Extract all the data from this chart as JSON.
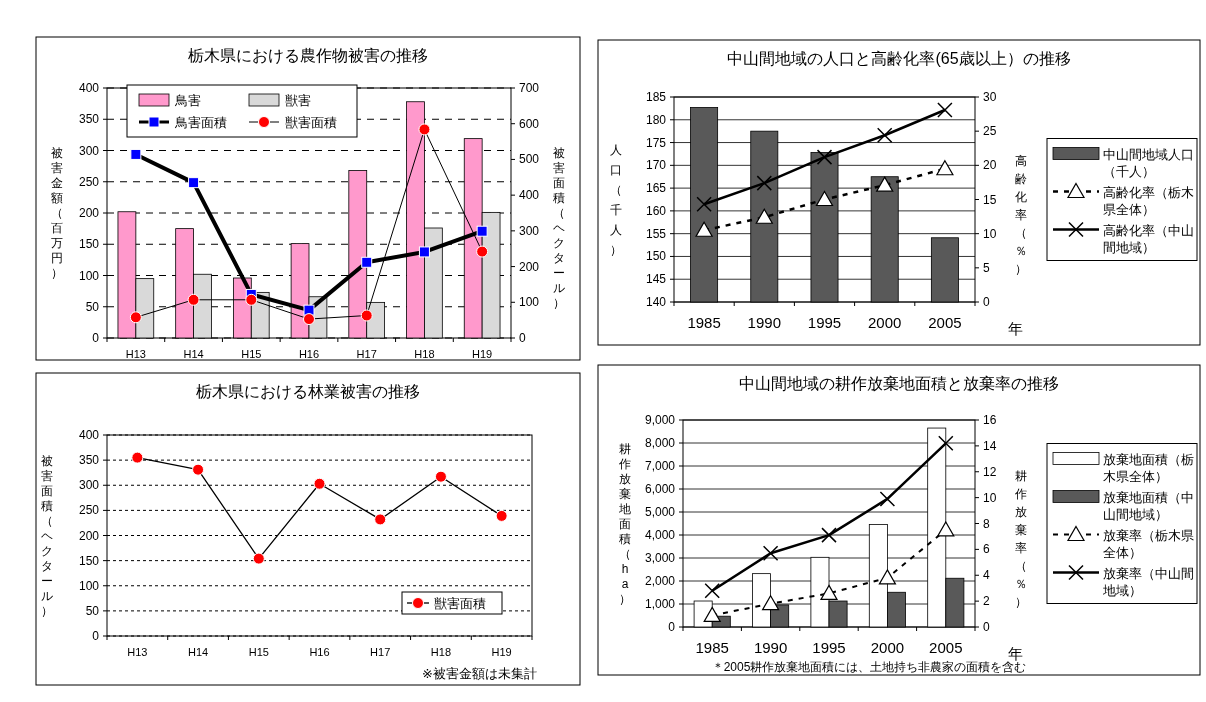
{
  "chart_data": [
    {
      "type": "bar",
      "title": "栃木県における農作物被害の推移",
      "ylabel": "被害金額（百万円）",
      "y2label": "被害面積（ヘクタール）",
      "categories": [
        "H13",
        "H14",
        "H15",
        "H16",
        "H17",
        "H18",
        "H19"
      ],
      "series": [
        {
          "name": "鳥害",
          "color": "#ff99cc",
          "values": [
            202,
            175,
            96,
            151,
            268,
            378,
            319
          ]
        },
        {
          "name": "獣害",
          "color": "#d9d9d9",
          "values": [
            95,
            102,
            73,
            66,
            57,
            176,
            201
          ]
        },
        {
          "name": "鳥害面積",
          "type": "line",
          "axis": "y2",
          "color": "#0000ff",
          "marker": "square",
          "values": [
            514,
            435,
            122,
            78,
            212,
            241,
            299
          ]
        },
        {
          "name": "獣害面積",
          "type": "line",
          "axis": "y2",
          "color": "#ff0000",
          "marker": "circle",
          "values": [
            58,
            107,
            107,
            53,
            63,
            584,
            242
          ]
        }
      ],
      "ylim": [
        0,
        400
      ],
      "yticks": [
        0,
        50,
        100,
        150,
        200,
        250,
        300,
        350,
        400
      ],
      "y2lim": [
        0,
        700
      ],
      "y2ticks": [
        0,
        100,
        200,
        300,
        400,
        500,
        600,
        700
      ],
      "grid": "y",
      "legend": "top left"
    },
    {
      "type": "bar",
      "title": "中山間地域の人口と高齢化率(65歳以上）の推移",
      "ylabel": "人口（千人）",
      "y2label": "高齢化率（％）",
      "xlabel": "年",
      "categories": [
        "1985",
        "1990",
        "1995",
        "2000",
        "2005"
      ],
      "series": [
        {
          "name": "中山間地域人口（千人）",
          "color": "#595959",
          "values": [
            182.7,
            177.5,
            172.8,
            167.5,
            154.1
          ]
        },
        {
          "name": "高齢化率（栃木県全体）",
          "type": "line",
          "axis": "y2",
          "color": "#000000",
          "marker": "triangle",
          "line_style": "dashed",
          "values": [
            10.5,
            12.4,
            15.0,
            17.1,
            19.5
          ]
        },
        {
          "name": "高齢化率（中山間地域）",
          "type": "line",
          "axis": "y2",
          "color": "#000000",
          "marker": "cross",
          "line_style": "solid",
          "values": [
            14.3,
            17.4,
            21.2,
            24.4,
            28.1
          ]
        }
      ],
      "ylim": [
        140,
        185
      ],
      "yticks": [
        140,
        145,
        150,
        155,
        160,
        165,
        170,
        175,
        180,
        185
      ],
      "y2lim": [
        0,
        30
      ],
      "y2ticks": [
        0,
        5,
        10,
        15,
        20,
        25,
        30
      ],
      "grid": "y",
      "legend": "right"
    },
    {
      "type": "line",
      "title": "栃木県における林業被害の推移",
      "ylabel": "被害面積（ヘクタール）",
      "categories": [
        "H13",
        "H14",
        "H15",
        "H16",
        "H17",
        "H18",
        "H19"
      ],
      "series": [
        {
          "name": "獣害面積",
          "color": "#ff0000",
          "marker": "circle",
          "values": [
            355,
            331,
            154,
            303,
            232,
            317,
            239
          ]
        }
      ],
      "ylim": [
        0,
        400
      ],
      "yticks": [
        0,
        50,
        100,
        150,
        200,
        250,
        300,
        350,
        400
      ],
      "grid": "y",
      "legend": "bottom right",
      "annotations": [
        "※被害金額は未集計"
      ]
    },
    {
      "type": "bar",
      "title": "中山間地域の耕作放棄地面積と放棄率の推移",
      "ylabel": "耕作放棄地面積（ha）",
      "y2label": "耕作放棄率（％）",
      "xlabel": "年",
      "categories": [
        "1985",
        "1990",
        "1995",
        "2000",
        "2005"
      ],
      "series": [
        {
          "name": "放棄地面積（栃木県全体）",
          "color": "#ffffff",
          "values": [
            1130,
            2320,
            3030,
            4460,
            8650
          ]
        },
        {
          "name": "放棄地面積（中山間地域）",
          "color": "#595959",
          "values": [
            470,
            960,
            1130,
            1510,
            2120
          ]
        },
        {
          "name": "放棄率（栃木県全体）",
          "type": "line",
          "axis": "y2",
          "color": "#000000",
          "marker": "triangle",
          "line_style": "dashed",
          "values": [
            0.9,
            1.8,
            2.6,
            3.8,
            7.5
          ]
        },
        {
          "name": "放棄率（中山間地域）",
          "type": "line",
          "axis": "y2",
          "color": "#000000",
          "marker": "cross",
          "line_style": "solid",
          "values": [
            2.8,
            5.7,
            7.1,
            9.9,
            14.2
          ]
        }
      ],
      "ylim": [
        0,
        9000
      ],
      "yticks": [
        0,
        {
          "value": 1000,
          "label": "1,000"
        },
        {
          "value": 2000,
          "label": "2,000"
        },
        {
          "value": 3000,
          "label": "3,000"
        },
        {
          "value": 4000,
          "label": "4,000"
        },
        {
          "value": 5000,
          "label": "5,000"
        },
        {
          "value": 6000,
          "label": "6,000"
        },
        {
          "value": 7000,
          "label": "7,000"
        },
        {
          "value": 8000,
          "label": "8,000"
        },
        {
          "value": 9000,
          "label": "9,000"
        }
      ],
      "y2lim": [
        0,
        16
      ],
      "y2ticks": [
        0,
        2,
        4,
        6,
        8,
        10,
        12,
        14,
        16
      ],
      "grid": "y",
      "legend": "right",
      "annotations": [
        "＊2005耕作放棄地面積には、土地持ち非農家の面積を含む"
      ]
    }
  ]
}
